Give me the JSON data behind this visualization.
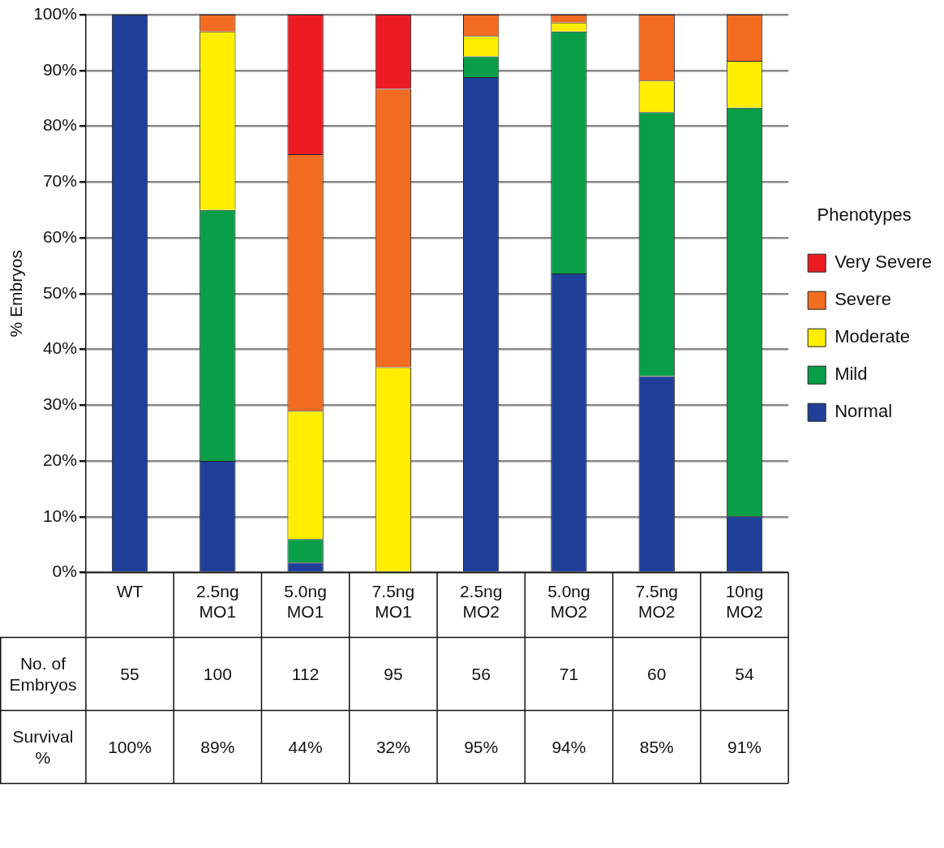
{
  "chart_data": {
    "type": "bar",
    "stacked": true,
    "ylabel": "% Embryos",
    "legend_title": "Phenotypes",
    "legend": "right",
    "grid": "y",
    "categories": [
      "WT",
      "2.5ng MO1",
      "5.0ng MO1",
      "7.5ng MO1",
      "2.5ng MO2",
      "5.0ng MO2",
      "7.5ng MO2",
      "10ng MO2"
    ],
    "series": [
      {
        "name": "Normal",
        "color": "#1f3f99",
        "values": [
          100,
          20,
          1.8,
          0,
          88.8,
          53.6,
          35.2,
          10.1
        ]
      },
      {
        "name": "Mild",
        "color": "#0a9e48",
        "values": [
          0,
          45,
          4.2,
          0,
          3.7,
          43.4,
          47.3,
          73.2
        ]
      },
      {
        "name": "Moderate",
        "color": "#ffee00",
        "values": [
          0,
          32,
          23,
          36.8,
          3.7,
          1.6,
          5.7,
          8.4
        ]
      },
      {
        "name": "Severe",
        "color": "#f26c22",
        "values": [
          0,
          3,
          46,
          49.9,
          3.8,
          1.4,
          11.8,
          8.3
        ]
      },
      {
        "name": "Very Severe",
        "color": "#ed1c24",
        "values": [
          0,
          0,
          25,
          13.3,
          0,
          0,
          0,
          0
        ]
      }
    ],
    "ylim": [
      0,
      100
    ],
    "yticks": [
      {
        "value": 0,
        "label": "0%"
      },
      {
        "value": 10,
        "label": "10%"
      },
      {
        "value": 20,
        "label": "20%"
      },
      {
        "value": 30,
        "label": "30%"
      },
      {
        "value": 40,
        "label": "40%"
      },
      {
        "value": 50,
        "label": "50%"
      },
      {
        "value": 60,
        "label": "60%"
      },
      {
        "value": 70,
        "label": "70%"
      },
      {
        "value": 80,
        "label": "80%"
      },
      {
        "value": 90,
        "label": "90%"
      },
      {
        "value": 100,
        "label": "100%"
      }
    ],
    "annotations": [
      "No. of Embryos",
      "55",
      "100",
      "112",
      "95",
      "56",
      "71",
      "60",
      "54",
      "Survival %",
      "100%",
      "89%",
      "44%",
      "32%",
      "95%",
      "94%",
      "85%",
      "91%"
    ]
  }
}
